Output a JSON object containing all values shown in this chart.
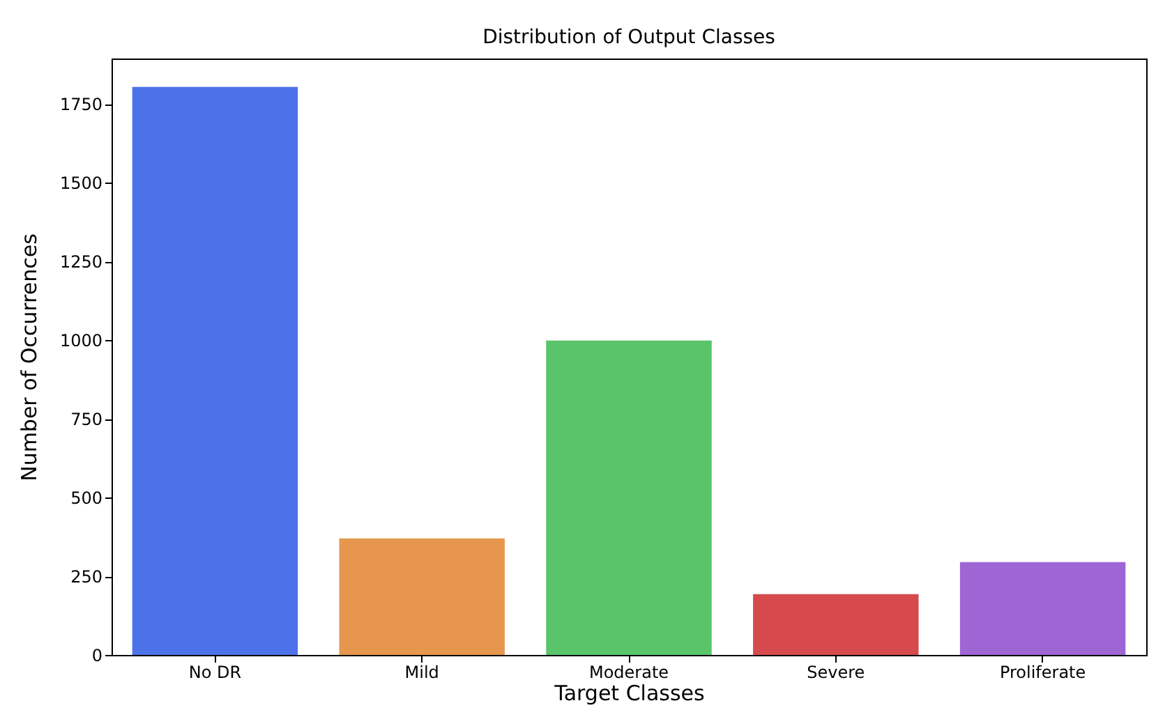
{
  "chart_data": {
    "type": "bar",
    "title": "Distribution of Output Classes",
    "xlabel": "Target Classes",
    "ylabel": "Number of Occurrences",
    "categories": [
      "No DR",
      "Mild",
      "Moderate",
      "Severe",
      "Proliferate"
    ],
    "values": [
      1805,
      370,
      999,
      193,
      295
    ],
    "colors": [
      "#4b72e8",
      "#e6974d",
      "#59c46a",
      "#d64a4d",
      "#9e66d4"
    ],
    "ylim": [
      0,
      1895
    ],
    "yticks": [
      0,
      250,
      500,
      750,
      1000,
      1250,
      1500,
      1750
    ],
    "grid": false,
    "legend": false
  }
}
